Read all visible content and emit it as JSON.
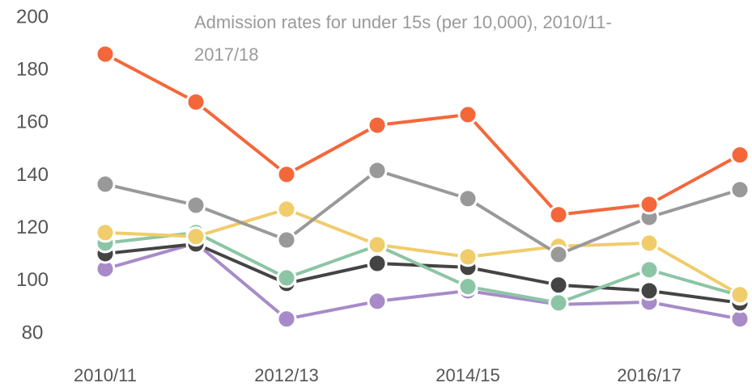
{
  "chart_data": {
    "type": "line",
    "title": "Admission rates for under 15s (per 10,000), 2010/11-2017/18",
    "categories": [
      "2010/11",
      null,
      "2012/13",
      null,
      "2014/15",
      null,
      "2016/17",
      null
    ],
    "series": [
      {
        "color": "#a78bc9",
        "values": [
          104.6,
          114.4,
          85.6,
          92.3,
          96.3,
          91.1,
          92.0,
          85.6
        ]
      },
      {
        "color": "#444444",
        "values": [
          110.4,
          114.1,
          99.1,
          106.7,
          105.2,
          98.5,
          96.3,
          91.7
        ]
      },
      {
        "color": "#8cc5a5",
        "values": [
          114.4,
          118.4,
          101.2,
          113.5,
          97.9,
          91.7,
          104.3,
          94.5
        ]
      },
      {
        "color": "#f0cc6b",
        "values": [
          118.4,
          116.9,
          127.3,
          113.8,
          109.2,
          113.2,
          114.4,
          94.8
        ]
      },
      {
        "color": "#999999",
        "values": [
          136.8,
          128.8,
          115.6,
          142.0,
          131.3,
          110.1,
          124.2,
          134.7
        ]
      },
      {
        "color": "#f4673a",
        "values": [
          186.2,
          168.0,
          140.5,
          159.2,
          163.2,
          125.2,
          129.1,
          147.9
        ]
      }
    ],
    "ylim": [
      80,
      200
    ],
    "yticks": [
      80,
      100,
      120,
      140,
      160,
      180,
      200
    ],
    "grid": false
  }
}
